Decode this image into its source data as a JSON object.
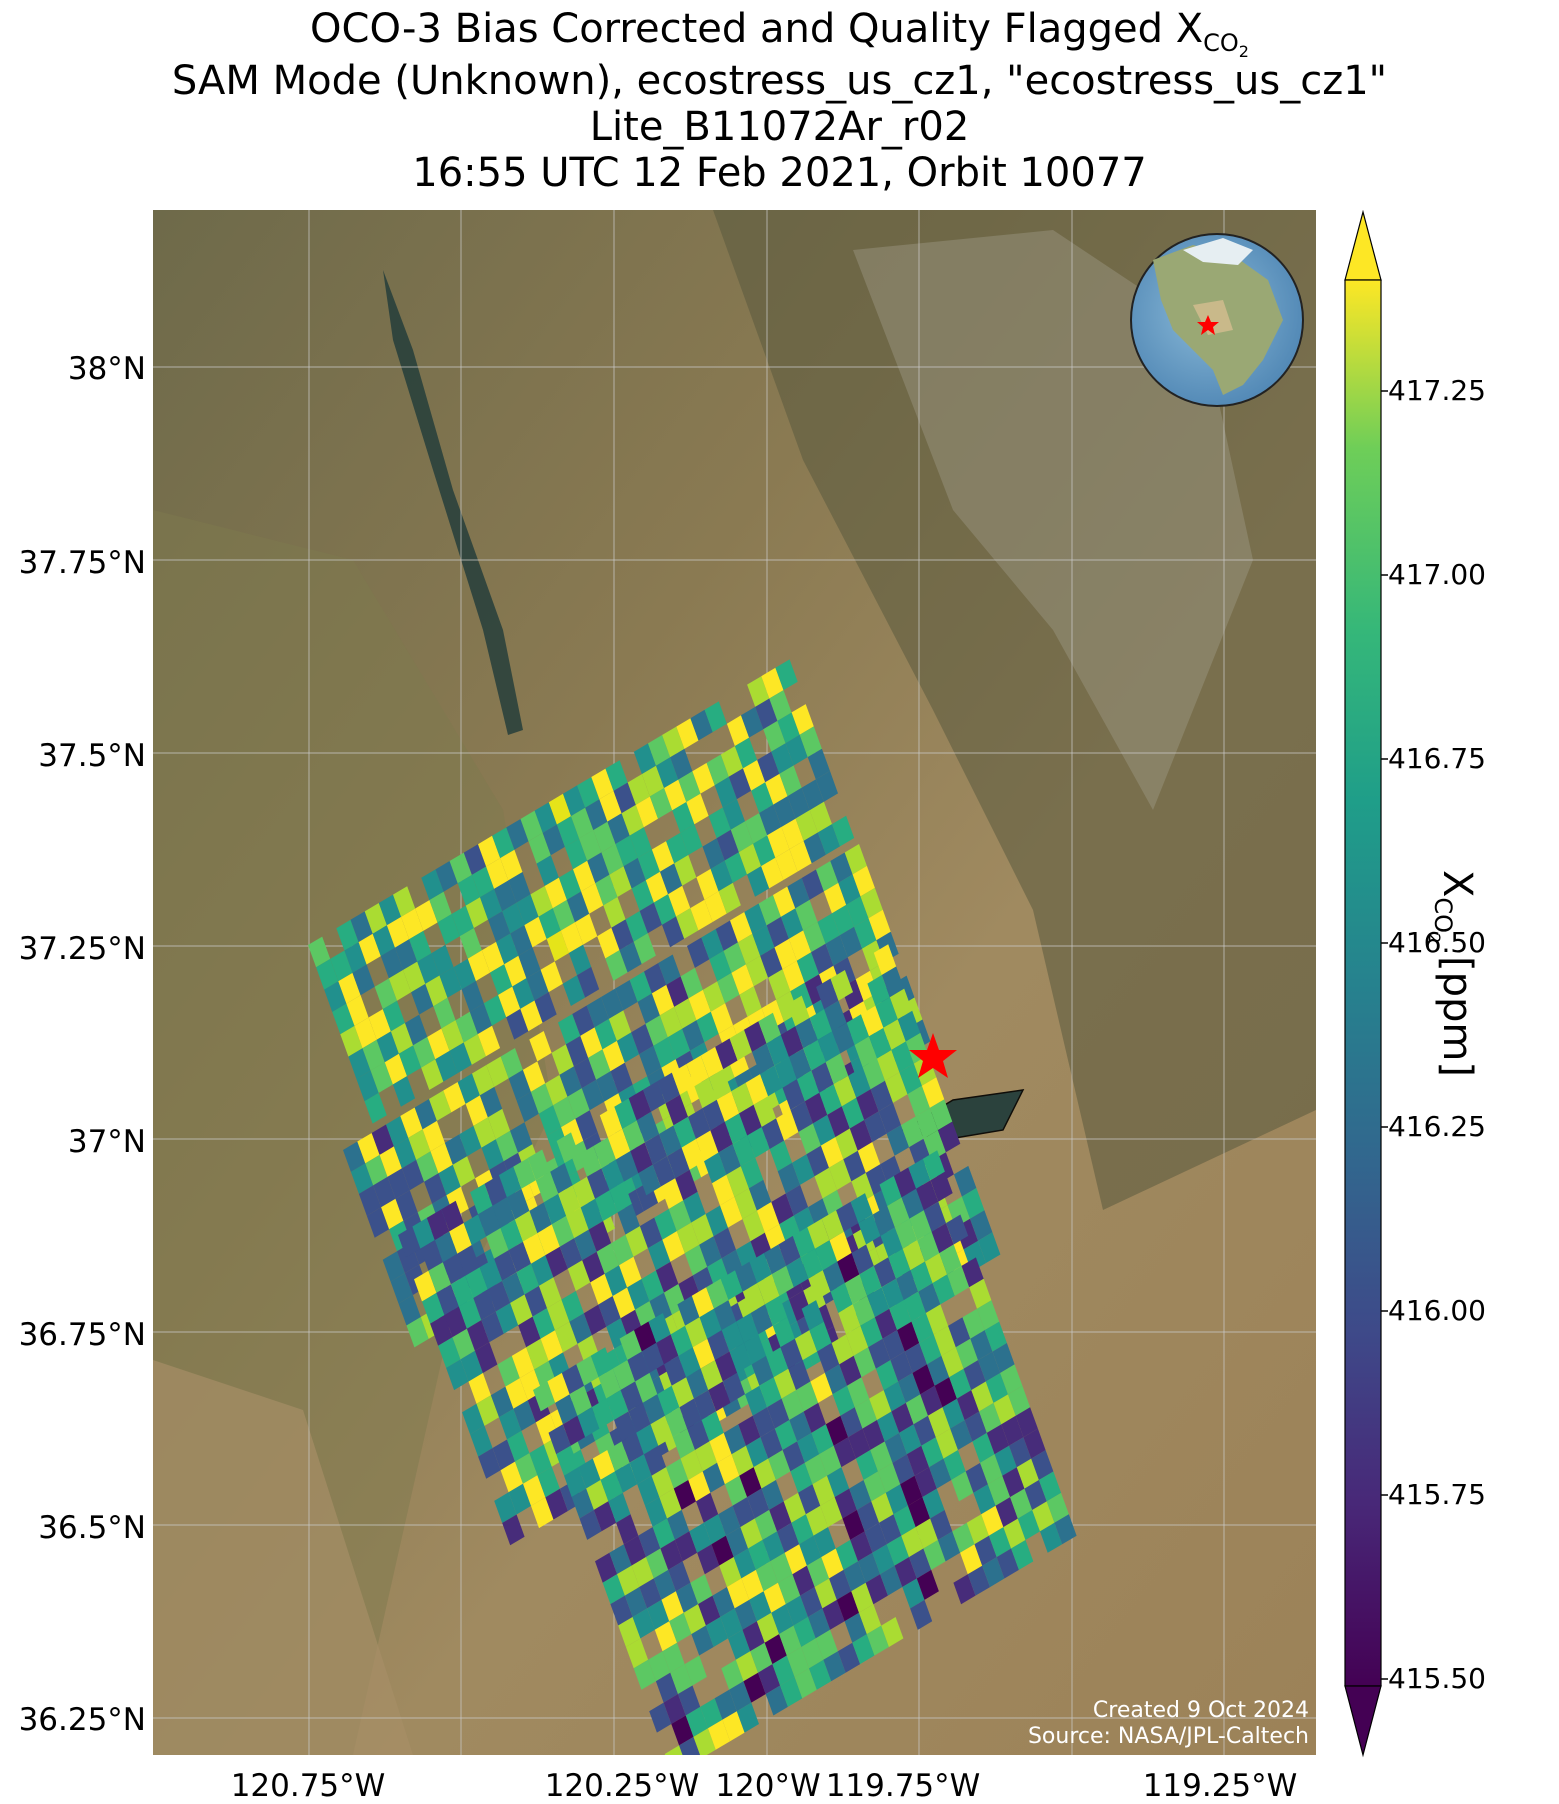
{
  "title": {
    "line1_prefix": "OCO-3 Bias Corrected and Quality Flagged X",
    "line1_sub": "CO",
    "line1_sub2": "2",
    "line2": "SAM Mode (Unknown), ecostress_us_cz1, \"ecostress_us_cz1\"",
    "line3": "Lite_B11072Ar_r02",
    "line4": "16:55 UTC 12 Feb 2021, Orbit 10077"
  },
  "map": {
    "lat_labels": [
      "38°N",
      "37.75°N",
      "37.5°N",
      "37.25°N",
      "37°N",
      "36.75°N",
      "36.5°N",
      "36.25°N"
    ],
    "lon_labels": [
      "120.75°W",
      "120.25°W",
      "120°W",
      "119.75°W",
      "119.25°W"
    ],
    "target_marker": "red-star",
    "inset": "globe-north-america-with-red-star",
    "credit_line1": "Created 9 Oct 2024",
    "credit_line2": "Source: NASA/JPL-Caltech"
  },
  "colorbar": {
    "ticks": [
      "417.25",
      "417.00",
      "416.75",
      "416.50",
      "416.25",
      "416.00",
      "415.75",
      "415.50"
    ],
    "label_prefix": "X",
    "label_sub": "CO",
    "label_sub2": "2",
    "label_suffix": " [ppm]",
    "colormap": "viridis",
    "range": [
      415.5,
      417.25
    ],
    "extend": "both"
  },
  "colors": {
    "viridis_low": "#440154",
    "viridis_mid": "#21918c",
    "viridis_high": "#fde725",
    "star": "#ff0000"
  }
}
